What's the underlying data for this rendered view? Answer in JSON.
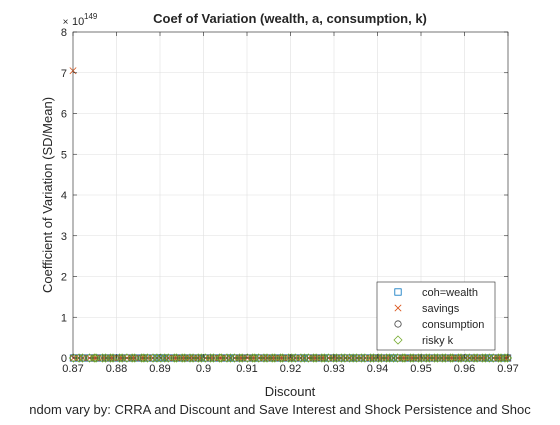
{
  "chart_data": {
    "type": "scatter",
    "title": "Coef of Variation (wealth, a, consumption, k)",
    "xlabel": "Discount",
    "ylabel": "Coefficient of Variation (SD/Mean)",
    "caption": "ndom vary by: CRRA and Discount and Save Interest and Shock Persistence and Shoc",
    "y_exponent_base": "10",
    "y_exponent": "149",
    "xlim": [
      0.87,
      0.97
    ],
    "ylim": [
      0,
      8
    ],
    "xticks": [
      "0.87",
      "0.88",
      "0.89",
      "0.9",
      "0.91",
      "0.92",
      "0.93",
      "0.94",
      "0.95",
      "0.96",
      "0.97"
    ],
    "yticks": [
      "0",
      "1",
      "2",
      "3",
      "4",
      "5",
      "6",
      "7",
      "8"
    ],
    "grid": true,
    "legend_position": "bottom-right",
    "outlier": {
      "series": "savings",
      "x": 0.87,
      "y": 7.05
    },
    "series": [
      {
        "name": "coh=wealth",
        "marker": "square",
        "color": "#0072BD",
        "y": 0
      },
      {
        "name": "savings",
        "marker": "x",
        "color": "#D95319",
        "y": 0
      },
      {
        "name": "consumption",
        "marker": "circle",
        "color": "#404040",
        "y": 0
      },
      {
        "name": "risky k",
        "marker": "diamond",
        "color": "#77AC30",
        "y": 0
      }
    ],
    "x_points": [
      0.8701,
      0.8714,
      0.8722,
      0.8738,
      0.8749,
      0.8753,
      0.8768,
      0.8775,
      0.8786,
      0.8792,
      0.8807,
      0.8813,
      0.8824,
      0.8836,
      0.8842,
      0.8858,
      0.8863,
      0.8871,
      0.8884,
      0.8893,
      0.8902,
      0.8911,
      0.8919,
      0.8933,
      0.8938,
      0.8951,
      0.8957,
      0.8969,
      0.8976,
      0.8988,
      0.8995,
      0.9004,
      0.9016,
      0.9023,
      0.9037,
      0.9041,
      0.9054,
      0.9062,
      0.9071,
      0.9083,
      0.9089,
      0.9101,
      0.9113,
      0.9118,
      0.9127,
      0.9139,
      0.9146,
      0.9158,
      0.9164,
      0.9177,
      0.9182,
      0.9196,
      0.9203,
      0.9211,
      0.9224,
      0.9232,
      0.9241,
      0.9253,
      0.9259,
      0.9272,
      0.9278,
      0.9287,
      0.9299,
      0.9306,
      0.9317,
      0.9325,
      0.9336,
      0.9344,
      0.9352,
      0.9363,
      0.9371,
      0.9384,
      0.9391,
      0.9402,
      0.9409,
      0.9421,
      0.9428,
      0.9437,
      0.9446,
      0.9458,
      0.9463,
      0.9476,
      0.9482,
      0.9494,
      0.9501,
      0.9512,
      0.9519,
      0.9531,
      0.9538,
      0.9549,
      0.9556,
      0.9568,
      0.9573,
      0.9586,
      0.9592,
      0.9603,
      0.9611,
      0.9622,
      0.9629,
      0.9641,
      0.9648,
      0.9657,
      0.9666,
      0.9678,
      0.9684,
      0.9693,
      0.9699
    ]
  }
}
